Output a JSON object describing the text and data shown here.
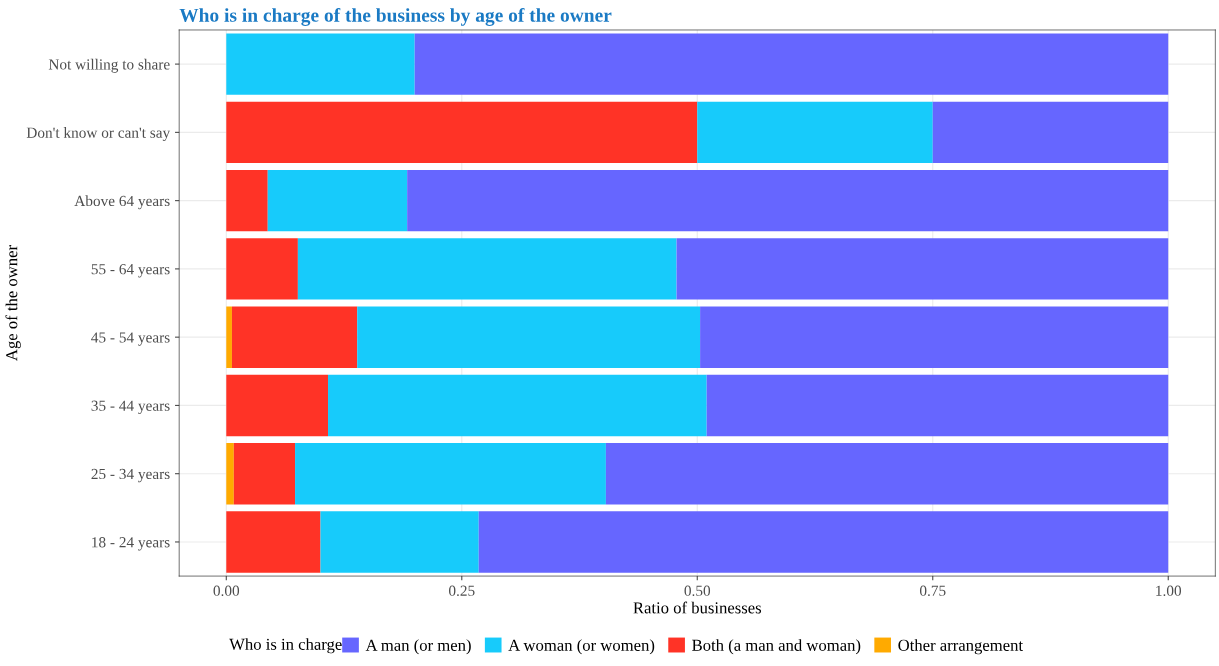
{
  "chart_data": {
    "type": "bar",
    "orientation": "horizontal",
    "stacked": true,
    "title": "Who is in charge of the business by age of the owner",
    "xlabel": "Ratio of businesses",
    "ylabel": "Age of the owner",
    "legend_title": "Who is in charge",
    "categories": [
      "Not willing to share",
      "Don't know or can't say",
      "Above 64 years",
      "55 - 64 years",
      "45 - 54 years",
      "35 - 44 years",
      "25 - 34 years",
      "18 - 24 years"
    ],
    "series": [
      {
        "name": "Other arrangement",
        "color": "#ffaa00",
        "values": [
          0,
          0,
          0,
          0,
          0.006,
          0,
          0.008,
          0
        ]
      },
      {
        "name": "Both (a man and woman)",
        "color": "#ff3326",
        "values": [
          0,
          0.5,
          0.044,
          0.076,
          0.133,
          0.108,
          0.065,
          0.1
        ]
      },
      {
        "name": "A woman (or women)",
        "color": "#17cbfb",
        "values": [
          0.2,
          0.25,
          0.148,
          0.402,
          0.364,
          0.402,
          0.33,
          0.168
        ]
      },
      {
        "name": "A man (or men)",
        "color": "#6666ff",
        "values": [
          0.8,
          0.25,
          0.808,
          0.522,
          0.497,
          0.49,
          0.597,
          0.732
        ]
      }
    ],
    "xlim": [
      -0.05,
      1.05
    ],
    "xticks": [
      {
        "value": 0,
        "label": "0.00"
      },
      {
        "value": 0.25,
        "label": "0.25"
      },
      {
        "value": 0.5,
        "label": "0.50"
      },
      {
        "value": 0.75,
        "label": "0.75"
      },
      {
        "value": 1,
        "label": "1.00"
      }
    ],
    "grid": true,
    "legend": "bottom"
  }
}
